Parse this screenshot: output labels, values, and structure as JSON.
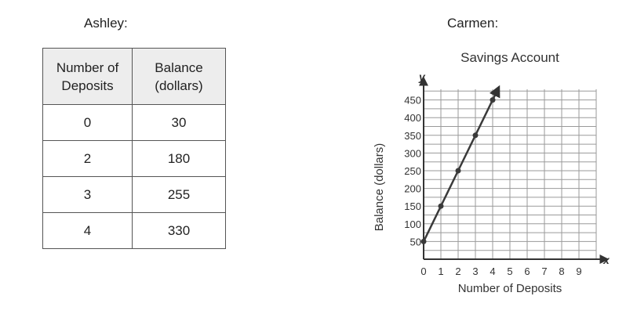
{
  "labels": {
    "left_name": "Ashley:",
    "right_name": "Carmen:"
  },
  "table": {
    "headers": [
      "Number of\nDeposits",
      "Balance\n(dollars)"
    ],
    "rows": [
      [
        "0",
        "30"
      ],
      [
        "2",
        "180"
      ],
      [
        "3",
        "255"
      ],
      [
        "4",
        "330"
      ]
    ]
  },
  "chart_data": {
    "type": "line",
    "title": "Savings Account",
    "xlabel": "Number of Deposits",
    "ylabel": "Balance (dollars)",
    "x_axis_letter": "x",
    "y_axis_letter": "y",
    "xlim": [
      0,
      10
    ],
    "ylim": [
      0,
      480
    ],
    "x_ticks": [
      0,
      1,
      2,
      3,
      4,
      5,
      6,
      7,
      8,
      9
    ],
    "y_ticks": [
      50,
      100,
      150,
      200,
      250,
      300,
      350,
      400,
      450
    ],
    "grid": true,
    "series": [
      {
        "x": [
          0,
          1,
          2,
          3,
          4
        ],
        "y": [
          50,
          150,
          250,
          350,
          450
        ]
      }
    ],
    "line_extends_with_arrow": true,
    "colors": {
      "line": "#3a3a3a",
      "grid": "#9a9a9a",
      "axis": "#333333"
    }
  }
}
